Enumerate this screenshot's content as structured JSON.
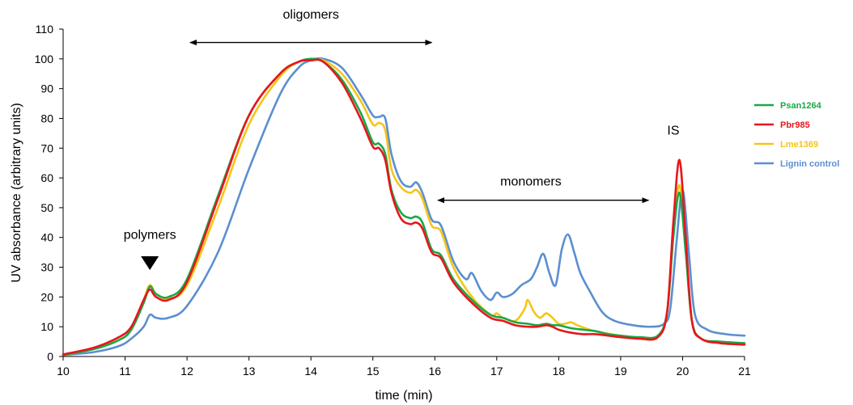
{
  "chart_data": {
    "type": "line",
    "xlabel": "time (min)",
    "ylabel": "UV absorbance (arbitrary units)",
    "xlim": [
      10,
      21
    ],
    "ylim": [
      0,
      110
    ],
    "xticks": [
      10,
      11,
      12,
      13,
      14,
      15,
      16,
      17,
      18,
      19,
      20,
      21
    ],
    "yticks": [
      0,
      10,
      20,
      30,
      40,
      50,
      60,
      70,
      80,
      90,
      100,
      110
    ],
    "grid": false,
    "legend_position": "right",
    "annotations": {
      "oligomers": {
        "text": "oligomers",
        "arrow_from": 12.05,
        "arrow_to": 15.95,
        "y": 105.5,
        "label_x": 14.0,
        "label_y": 113.5
      },
      "monomers": {
        "text": "monomers",
        "arrow_from": 16.05,
        "arrow_to": 19.45,
        "y": 52.5,
        "label_x": 17.55,
        "label_y": 57.5
      },
      "polymers": {
        "text": "polymers",
        "x": 11.4,
        "label_y": 39.5,
        "marker_y": 31.5
      },
      "IS": {
        "text": "IS",
        "x": 19.85,
        "label_y": 74.5
      }
    },
    "series": [
      {
        "name": "Psan1264",
        "color": "#19a84a",
        "x": [
          10,
          10.5,
          10.9,
          11.1,
          11.3,
          11.4,
          11.5,
          11.7,
          12.0,
          12.5,
          13.0,
          13.5,
          13.8,
          14.0,
          14.2,
          14.5,
          14.8,
          15.0,
          15.1,
          15.2,
          15.3,
          15.45,
          15.6,
          15.7,
          15.8,
          15.95,
          16.1,
          16.3,
          16.6,
          16.9,
          17.1,
          17.3,
          17.5,
          17.65,
          17.8,
          17.9,
          18.0,
          18.2,
          18.4,
          18.6,
          18.8,
          19.0,
          19.3,
          19.6,
          19.75,
          19.85,
          19.95,
          20.05,
          20.15,
          20.3,
          20.6,
          21.0
        ],
        "values": [
          0.5,
          2.5,
          5.5,
          9,
          18,
          23.5,
          21,
          20,
          26,
          54,
          81,
          95,
          99,
          100,
          99,
          93,
          82,
          72,
          71.5,
          68,
          56,
          48.5,
          46.5,
          47,
          45,
          36,
          34,
          26,
          19,
          14,
          13,
          11.5,
          11,
          10.5,
          11,
          10.5,
          10.5,
          9.5,
          9,
          8.5,
          7.5,
          7,
          6.5,
          7,
          15,
          40,
          55,
          35,
          12,
          6,
          5,
          4.5
        ]
      },
      {
        "name": "Pbr985",
        "color": "#e8161b",
        "x": [
          10,
          10.5,
          10.9,
          11.1,
          11.3,
          11.4,
          11.5,
          11.7,
          12.0,
          12.5,
          13.0,
          13.5,
          13.8,
          14.0,
          14.2,
          14.5,
          14.8,
          15.0,
          15.1,
          15.2,
          15.3,
          15.45,
          15.6,
          15.7,
          15.8,
          15.95,
          16.1,
          16.3,
          16.6,
          16.9,
          17.1,
          17.3,
          17.5,
          17.65,
          17.8,
          17.9,
          18.0,
          18.2,
          18.4,
          18.6,
          18.8,
          19.0,
          19.3,
          19.6,
          19.75,
          19.85,
          19.95,
          20.05,
          20.15,
          20.3,
          20.6,
          21.0
        ],
        "values": [
          0.7,
          3,
          6.5,
          10,
          19,
          22.5,
          20,
          19,
          25,
          53,
          81,
          95,
          99,
          99.5,
          99,
          92,
          80,
          70.5,
          70,
          66,
          55,
          46.5,
          44.5,
          45,
          43,
          35,
          33,
          25,
          18,
          13,
          12,
          10.5,
          10,
          10,
          10.5,
          10,
          9,
          8,
          7.5,
          7.5,
          7,
          6.5,
          6,
          6.5,
          15,
          45,
          66,
          40,
          12,
          6,
          4.5,
          4
        ]
      },
      {
        "name": "Lme1369",
        "color": "#f5c518",
        "x": [
          10,
          10.5,
          10.9,
          11.1,
          11.3,
          11.4,
          11.5,
          11.7,
          12.0,
          12.5,
          13.0,
          13.5,
          13.8,
          14.0,
          14.2,
          14.5,
          14.8,
          15.0,
          15.1,
          15.2,
          15.3,
          15.45,
          15.6,
          15.7,
          15.8,
          15.95,
          16.1,
          16.3,
          16.6,
          16.9,
          17.0,
          17.1,
          17.3,
          17.45,
          17.5,
          17.6,
          17.7,
          17.8,
          17.9,
          18.0,
          18.1,
          18.2,
          18.3,
          18.5,
          18.7,
          19.0,
          19.3,
          19.6,
          19.75,
          19.85,
          19.95,
          20.05,
          20.15,
          20.3,
          20.6,
          21.0
        ],
        "values": [
          0.5,
          2.5,
          5.5,
          9,
          19,
          24,
          21,
          19.5,
          24,
          50,
          78,
          94,
          99,
          99.5,
          99.5,
          95,
          86,
          78,
          78.5,
          76,
          63,
          57,
          55,
          56,
          53,
          44,
          42,
          30,
          20,
          14,
          14.5,
          13,
          12,
          16,
          19,
          15,
          13,
          14.5,
          13,
          11,
          11,
          11.5,
          10.5,
          9,
          8,
          7,
          6,
          6.5,
          15,
          42,
          57.5,
          36,
          12,
          6,
          4.5,
          4
        ]
      },
      {
        "name": "Lignin control",
        "color": "#5b8fd0",
        "x": [
          10,
          10.5,
          10.9,
          11.1,
          11.3,
          11.4,
          11.5,
          11.7,
          12.0,
          12.5,
          13.0,
          13.5,
          13.8,
          14.0,
          14.2,
          14.5,
          14.8,
          15.0,
          15.1,
          15.2,
          15.3,
          15.45,
          15.6,
          15.7,
          15.8,
          15.95,
          16.1,
          16.3,
          16.5,
          16.6,
          16.75,
          16.9,
          17.0,
          17.1,
          17.25,
          17.4,
          17.55,
          17.65,
          17.75,
          17.85,
          17.95,
          18.05,
          18.15,
          18.25,
          18.35,
          18.5,
          18.7,
          18.9,
          19.2,
          19.5,
          19.7,
          19.8,
          19.9,
          20.0,
          20.1,
          20.2,
          20.4,
          20.7,
          21.0
        ],
        "values": [
          0.5,
          1.5,
          3.5,
          6,
          10,
          14,
          13,
          13,
          17,
          35,
          63,
          88,
          97,
          99.5,
          100,
          97,
          88,
          81,
          80.5,
          80,
          68,
          59,
          57,
          58.5,
          55,
          46,
          44,
          32,
          26,
          28,
          22,
          19,
          21.5,
          20,
          21,
          24,
          26,
          30,
          34.5,
          28,
          24,
          36,
          41,
          35,
          28,
          22,
          15,
          12,
          10.5,
          10,
          11,
          16,
          38,
          56,
          35,
          14,
          9,
          7.5,
          7
        ]
      }
    ]
  }
}
